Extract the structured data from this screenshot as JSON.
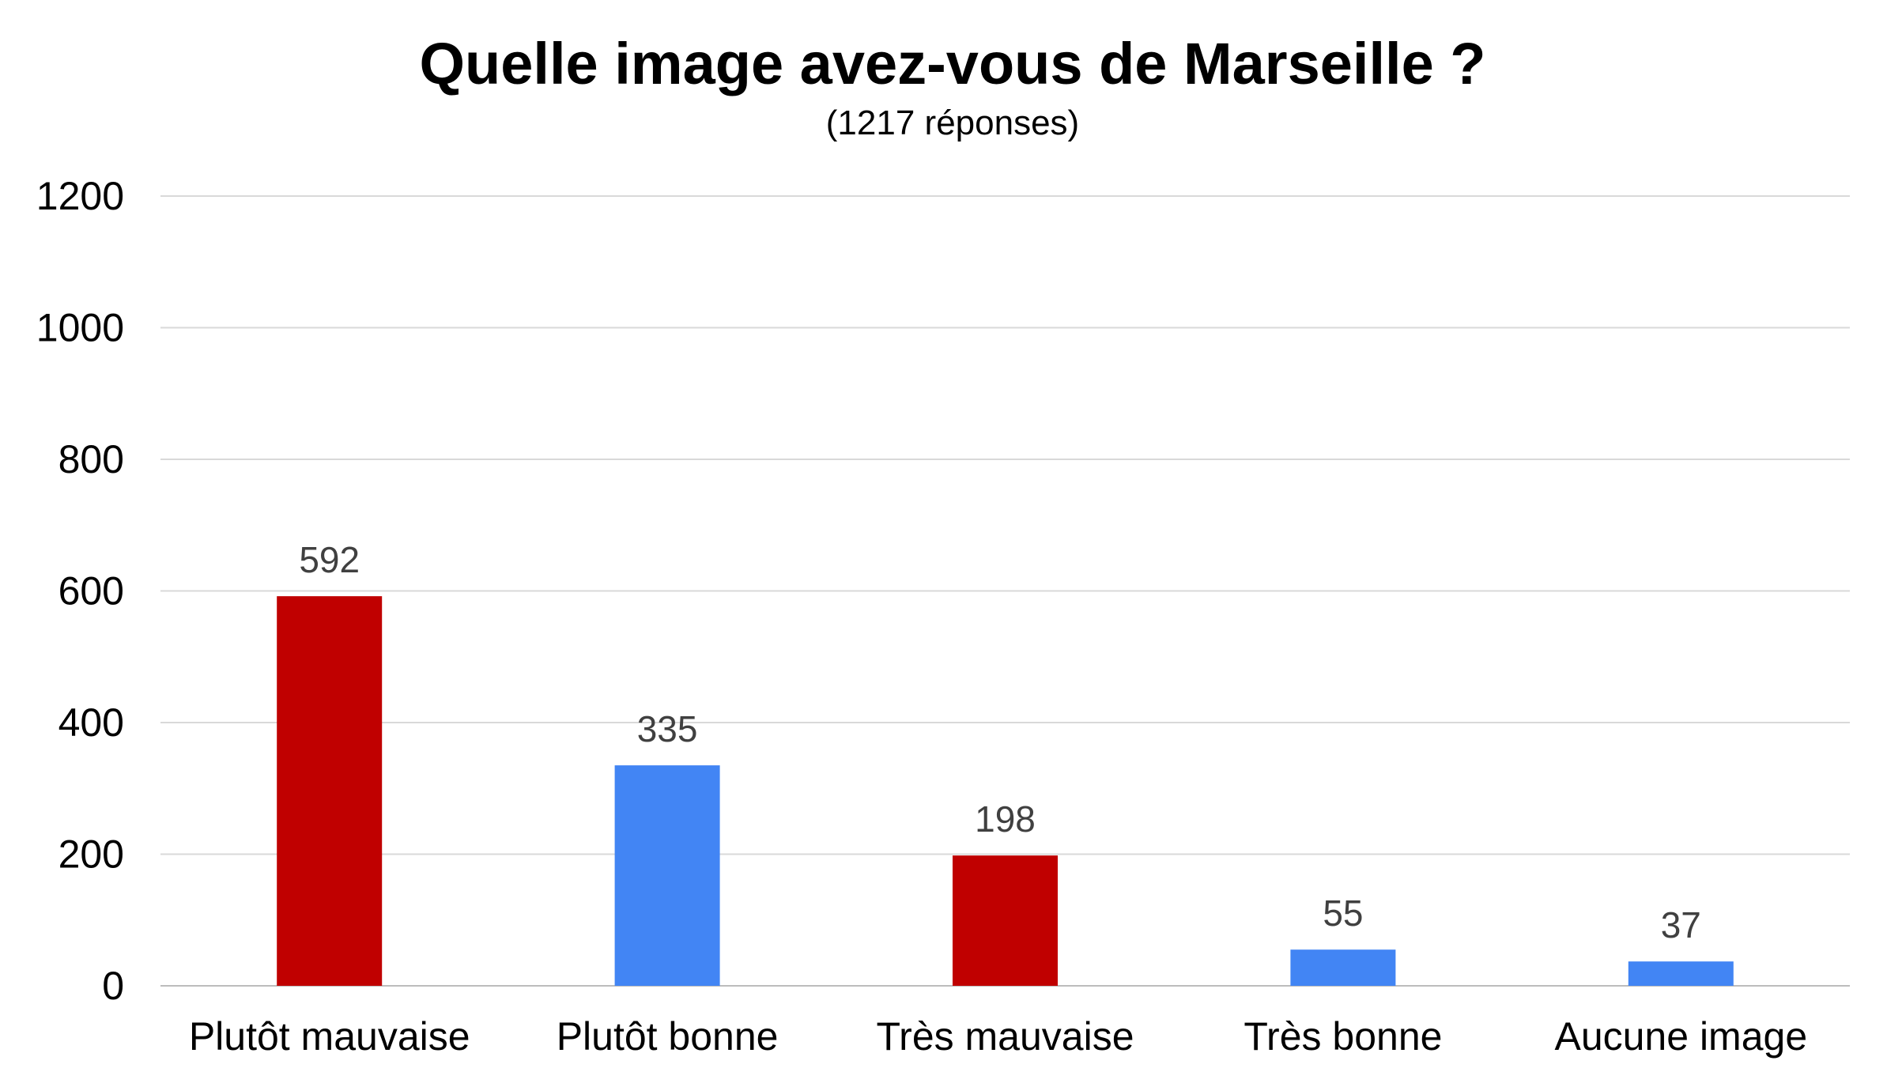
{
  "chart_data": {
    "type": "bar",
    "title": "Quelle image avez-vous de Marseille ?",
    "subtitle": "(1217 réponses)",
    "xlabel": "",
    "ylabel": "",
    "categories": [
      "Plutôt mauvaise",
      "Plutôt bonne",
      "Très mauvaise",
      "Très bonne",
      "Aucune image"
    ],
    "values": [
      592,
      335,
      198,
      55,
      37
    ],
    "data_labels": [
      "592",
      "335",
      "198",
      "55",
      "37"
    ],
    "bar_colors": [
      "#c00000",
      "#4285f4",
      "#c00000",
      "#4285f4",
      "#4285f4"
    ],
    "ylim": [
      0,
      1200
    ],
    "yticks": [
      0,
      200,
      400,
      600,
      800,
      1000,
      1200
    ],
    "ytick_labels": [
      "0",
      "200",
      "400",
      "600",
      "800",
      "1000",
      "1200"
    ],
    "grid": true,
    "legend": "none"
  }
}
